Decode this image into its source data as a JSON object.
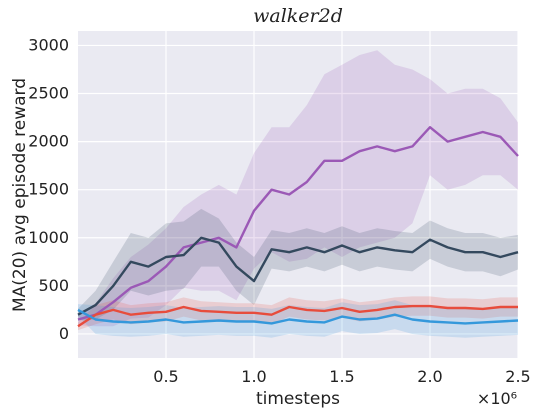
{
  "chart_data": {
    "type": "line",
    "title": "walker2d",
    "xlabel": "timesteps",
    "ylabel": "MA(20) avg episode reward",
    "x_multiplier": "×10⁶",
    "xlim": [
      0.0,
      2.5
    ],
    "ylim": [
      -250,
      3150
    ],
    "xticks": [
      0.5,
      1.0,
      1.5,
      2.0,
      2.5
    ],
    "xtick_labels": [
      "0.5",
      "1.0",
      "1.5",
      "2.0",
      "2.5"
    ],
    "yticks": [
      0,
      500,
      1000,
      1500,
      2000,
      2500,
      3000
    ],
    "ytick_labels": [
      "0",
      "500",
      "1000",
      "1500",
      "2000",
      "2500",
      "3000"
    ],
    "grid": true,
    "legend": "none",
    "background": "#eaeaf2",
    "x": [
      0.0,
      0.1,
      0.2,
      0.3,
      0.4,
      0.5,
      0.6,
      0.7,
      0.8,
      0.9,
      1.0,
      1.1,
      1.2,
      1.3,
      1.4,
      1.5,
      1.6,
      1.7,
      1.8,
      1.9,
      2.0,
      2.1,
      2.2,
      2.3,
      2.4,
      2.5
    ],
    "series": [
      {
        "color": "#9b59b6",
        "values": [
          150,
          200,
          330,
          480,
          550,
          700,
          900,
          950,
          1000,
          900,
          1280,
          1500,
          1450,
          1580,
          1800,
          1800,
          1900,
          1950,
          1900,
          1950,
          2150,
          2000,
          2050,
          2100,
          2050,
          1850
        ],
        "band": [
          60,
          120,
          250,
          320,
          380,
          400,
          420,
          500,
          550,
          550,
          600,
          650,
          700,
          800,
          900,
          1000,
          1000,
          1000,
          900,
          800,
          500,
          500,
          500,
          450,
          400,
          350
        ]
      },
      {
        "color": "#34495e",
        "values": [
          200,
          300,
          500,
          750,
          700,
          800,
          820,
          1000,
          950,
          700,
          550,
          880,
          850,
          900,
          850,
          920,
          850,
          900,
          870,
          850,
          980,
          900,
          850,
          850,
          800,
          850
        ],
        "band": [
          60,
          150,
          250,
          300,
          300,
          350,
          350,
          300,
          250,
          250,
          250,
          200,
          200,
          200,
          200,
          200,
          200,
          200,
          200,
          200,
          200,
          200,
          200,
          200,
          200,
          180
        ]
      },
      {
        "color": "#e74c3c",
        "values": [
          80,
          200,
          250,
          200,
          220,
          230,
          280,
          240,
          230,
          220,
          220,
          200,
          280,
          250,
          240,
          270,
          230,
          250,
          280,
          290,
          290,
          270,
          270,
          260,
          280,
          280
        ],
        "band": [
          40,
          100,
          100,
          100,
          100,
          100,
          100,
          100,
          100,
          100,
          100,
          100,
          100,
          100,
          100,
          100,
          100,
          100,
          100,
          100,
          100,
          100,
          100,
          100,
          100,
          100
        ]
      },
      {
        "color": "#3498db",
        "values": [
          250,
          150,
          130,
          120,
          130,
          150,
          120,
          130,
          140,
          130,
          130,
          110,
          150,
          130,
          120,
          180,
          150,
          160,
          200,
          150,
          130,
          120,
          110,
          120,
          130,
          140
        ],
        "band": [
          60,
          150,
          150,
          150,
          150,
          150,
          150,
          150,
          150,
          150,
          150,
          150,
          150,
          150,
          150,
          150,
          150,
          150,
          150,
          150,
          150,
          150,
          150,
          150,
          150,
          150
        ]
      }
    ]
  }
}
